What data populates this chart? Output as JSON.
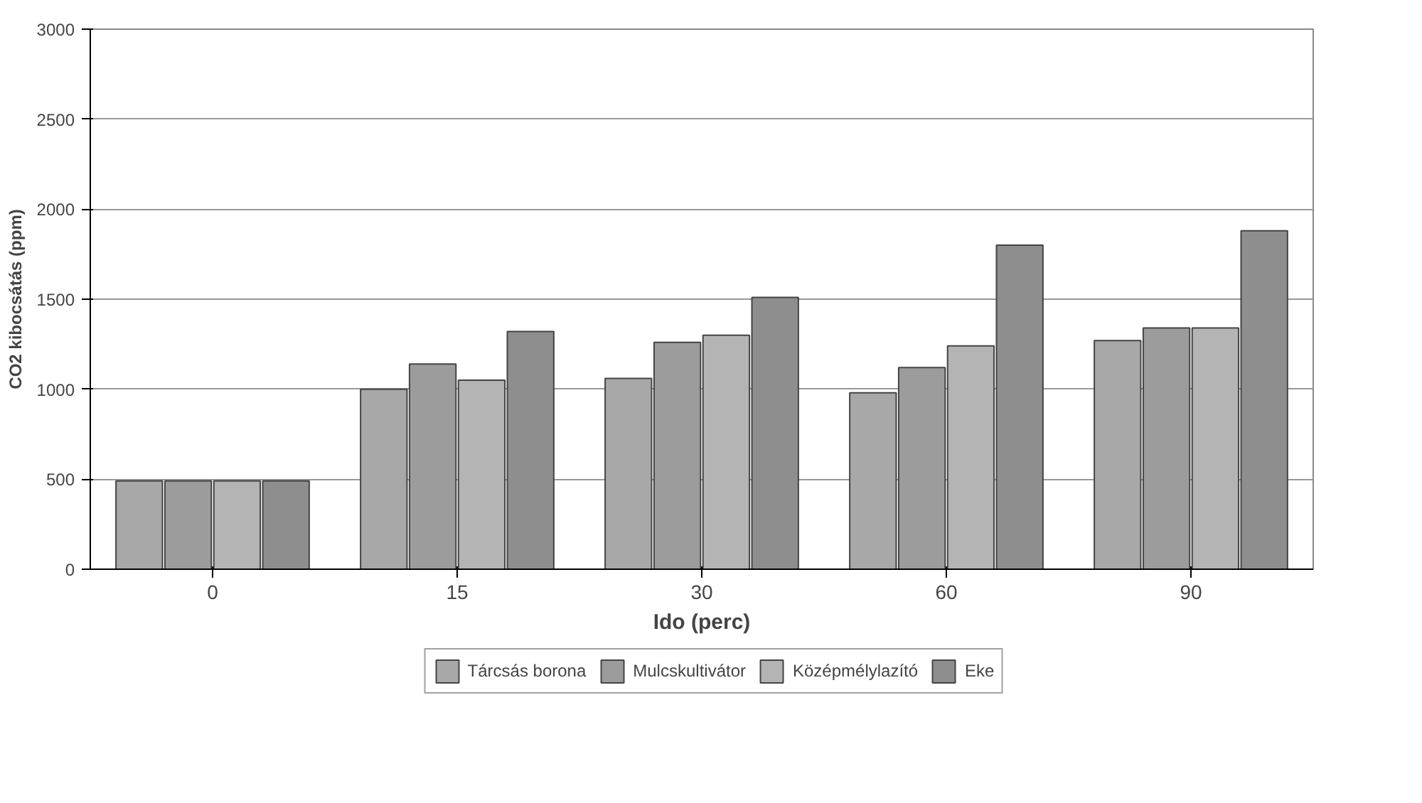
{
  "chart_data": {
    "type": "bar",
    "xlabel": "Ido (perc)",
    "ylabel": "CO2 kibocsátás (ppm)",
    "categories": [
      "0",
      "15",
      "30",
      "60",
      "90"
    ],
    "series": [
      {
        "name": "Tárcsás borona",
        "color": "#a8a8a8",
        "values": [
          490,
          1000,
          1060,
          980,
          1270
        ]
      },
      {
        "name": "Mulcskultivátor",
        "color": "#9c9c9c",
        "values": [
          490,
          1140,
          1260,
          1120,
          1340
        ]
      },
      {
        "name": "Középmélylazító",
        "color": "#b4b4b4",
        "values": [
          490,
          1050,
          1300,
          1240,
          1340
        ]
      },
      {
        "name": "Eke",
        "color": "#8e8e8e",
        "values": [
          490,
          1320,
          1510,
          1800,
          1880
        ]
      }
    ],
    "ylim": [
      0,
      3000
    ],
    "yticks": [
      0,
      500,
      1000,
      1500,
      2000,
      2500,
      3000
    ],
    "grid": "y",
    "legend": "bottom"
  }
}
